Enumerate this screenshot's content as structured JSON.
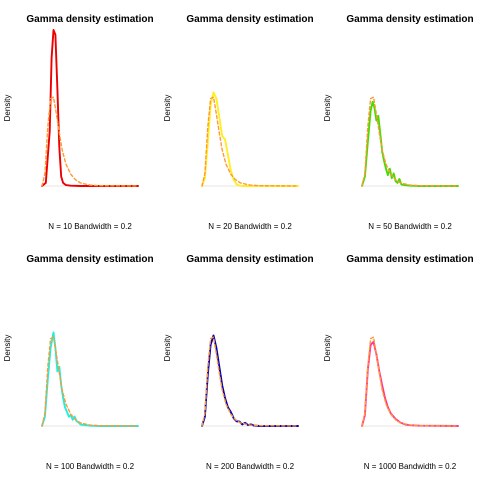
{
  "chart_data": [
    {
      "type": "line",
      "title": "Gamma density estimation",
      "xlabel": "N = 10   Bandwidth = 0.2",
      "ylabel": "Density",
      "xlim": [
        0,
        10
      ],
      "ylim": [
        0,
        1
      ],
      "series": [
        {
          "color": "#ee0000",
          "style": "solid",
          "x": [
            0,
            0.4,
            0.8,
            1.0,
            1.2,
            1.4,
            1.6,
            1.8,
            2.0,
            2.2,
            2.5,
            3.0,
            4.0,
            6.0,
            10.0
          ],
          "y": [
            0,
            0.02,
            0.35,
            0.82,
            1.0,
            0.97,
            0.62,
            0.25,
            0.06,
            0.02,
            0.006,
            0.002,
            0,
            0,
            0
          ]
        },
        {
          "color": "#ff9933",
          "style": "dashed",
          "x": [
            0,
            0.3,
            0.6,
            0.9,
            1.2,
            1.5,
            1.8,
            2.1,
            2.5,
            3.0,
            3.5,
            4.0,
            5.0,
            6.0,
            10.0
          ],
          "y": [
            0,
            0.08,
            0.38,
            0.56,
            0.57,
            0.46,
            0.34,
            0.23,
            0.14,
            0.075,
            0.04,
            0.02,
            0.006,
            0.002,
            0
          ]
        }
      ]
    },
    {
      "type": "line",
      "title": "Gamma density estimation",
      "xlabel": "N = 20   Bandwidth = 0.2",
      "ylabel": "Density",
      "xlim": [
        0,
        10
      ],
      "ylim": [
        0,
        1
      ],
      "series": [
        {
          "color": "#ffee22",
          "style": "solid",
          "x": [
            0,
            0.3,
            0.6,
            0.9,
            1.2,
            1.5,
            1.8,
            2.1,
            2.4,
            2.7,
            3.0,
            3.3,
            3.6,
            3.9,
            4.2,
            6.0,
            10.0
          ],
          "y": [
            0,
            0.05,
            0.28,
            0.52,
            0.6,
            0.56,
            0.44,
            0.32,
            0.3,
            0.2,
            0.1,
            0.04,
            0.01,
            0.003,
            0,
            0,
            0
          ]
        },
        {
          "color": "#ff9933",
          "style": "dashed",
          "x": [
            0,
            0.3,
            0.6,
            0.9,
            1.2,
            1.5,
            1.8,
            2.1,
            2.5,
            3.0,
            3.5,
            4.0,
            5.0,
            6.0,
            10.0
          ],
          "y": [
            0,
            0.08,
            0.38,
            0.56,
            0.57,
            0.46,
            0.34,
            0.23,
            0.14,
            0.075,
            0.04,
            0.02,
            0.006,
            0.002,
            0
          ]
        }
      ]
    },
    {
      "type": "line",
      "title": "Gamma density estimation",
      "xlabel": "N = 50   Bandwidth = 0.2",
      "ylabel": "Density",
      "xlim": [
        0,
        10
      ],
      "ylim": [
        0,
        1
      ],
      "series": [
        {
          "color": "#44dd00",
          "style": "solid",
          "x": [
            0,
            0.3,
            0.6,
            0.9,
            1.1,
            1.3,
            1.5,
            1.7,
            1.9,
            2.1,
            2.3,
            2.5,
            2.7,
            2.9,
            3.1,
            3.3,
            3.5,
            3.7,
            3.9,
            4.1,
            4.5,
            5.0,
            6.0,
            10.0
          ],
          "y": [
            0,
            0.06,
            0.28,
            0.48,
            0.54,
            0.5,
            0.42,
            0.45,
            0.34,
            0.22,
            0.16,
            0.11,
            0.07,
            0.11,
            0.05,
            0.08,
            0.03,
            0.02,
            0.045,
            0.01,
            0.005,
            0.002,
            0,
            0
          ]
        },
        {
          "color": "#ff9933",
          "style": "dashed",
          "x": [
            0,
            0.3,
            0.6,
            0.9,
            1.2,
            1.5,
            1.8,
            2.1,
            2.5,
            3.0,
            3.5,
            4.0,
            5.0,
            6.0,
            10.0
          ],
          "y": [
            0,
            0.08,
            0.38,
            0.56,
            0.57,
            0.46,
            0.34,
            0.23,
            0.14,
            0.075,
            0.04,
            0.02,
            0.006,
            0.002,
            0
          ]
        }
      ]
    },
    {
      "type": "line",
      "title": "Gamma density estimation",
      "xlabel": "N = 100   Bandwidth = 0.2",
      "ylabel": "Density",
      "xlim": [
        0,
        10
      ],
      "ylim": [
        0,
        1
      ],
      "series": [
        {
          "color": "#22eedd",
          "style": "solid",
          "x": [
            0,
            0.3,
            0.6,
            0.9,
            1.2,
            1.4,
            1.6,
            1.8,
            2.0,
            2.2,
            2.4,
            2.6,
            2.8,
            3.0,
            3.2,
            3.4,
            3.6,
            3.8,
            4.0,
            4.5,
            5.0,
            6.0,
            10.0
          ],
          "y": [
            0,
            0.06,
            0.3,
            0.5,
            0.6,
            0.5,
            0.35,
            0.38,
            0.26,
            0.18,
            0.12,
            0.09,
            0.06,
            0.07,
            0.04,
            0.06,
            0.03,
            0.025,
            0.01,
            0.005,
            0.002,
            0,
            0
          ]
        },
        {
          "color": "#ff9933",
          "style": "dashed",
          "x": [
            0,
            0.3,
            0.6,
            0.9,
            1.2,
            1.5,
            1.8,
            2.1,
            2.5,
            3.0,
            3.5,
            4.0,
            5.0,
            6.0,
            10.0
          ],
          "y": [
            0,
            0.08,
            0.38,
            0.56,
            0.57,
            0.46,
            0.34,
            0.23,
            0.14,
            0.075,
            0.04,
            0.02,
            0.006,
            0.002,
            0
          ]
        }
      ]
    },
    {
      "type": "line",
      "title": "Gamma density estimation",
      "xlabel": "N = 200   Bandwidth = 0.2",
      "ylabel": "Density",
      "xlim": [
        0,
        10
      ],
      "ylim": [
        0,
        1
      ],
      "series": [
        {
          "color": "#0000bb",
          "style": "solid",
          "x": [
            0,
            0.3,
            0.6,
            0.9,
            1.2,
            1.5,
            1.8,
            2.1,
            2.4,
            2.7,
            3.0,
            3.3,
            3.6,
            3.9,
            4.2,
            4.5,
            4.8,
            5.1,
            5.4,
            6.0,
            10.0
          ],
          "y": [
            0,
            0.06,
            0.33,
            0.52,
            0.58,
            0.5,
            0.38,
            0.26,
            0.18,
            0.12,
            0.09,
            0.05,
            0.03,
            0.028,
            0.01,
            0.02,
            0.006,
            0.01,
            0.003,
            0,
            0
          ]
        },
        {
          "color": "#ff9933",
          "style": "dashed",
          "x": [
            0,
            0.3,
            0.6,
            0.9,
            1.2,
            1.5,
            1.8,
            2.1,
            2.5,
            3.0,
            3.5,
            4.0,
            5.0,
            6.0,
            10.0
          ],
          "y": [
            0,
            0.08,
            0.38,
            0.56,
            0.57,
            0.46,
            0.34,
            0.23,
            0.14,
            0.075,
            0.04,
            0.02,
            0.006,
            0.002,
            0
          ]
        }
      ]
    },
    {
      "type": "line",
      "title": "Gamma density estimation",
      "xlabel": "N = 1000   Bandwidth = 0.2",
      "ylabel": "Density",
      "xlim": [
        0,
        10
      ],
      "ylim": [
        0,
        1
      ],
      "series": [
        {
          "color": "#ff3399",
          "style": "solid",
          "x": [
            0,
            0.3,
            0.6,
            0.9,
            1.2,
            1.5,
            1.8,
            2.1,
            2.4,
            2.7,
            3.0,
            3.5,
            4.0,
            4.5,
            5.0,
            6.0,
            10.0
          ],
          "y": [
            0,
            0.07,
            0.36,
            0.52,
            0.54,
            0.46,
            0.35,
            0.26,
            0.18,
            0.12,
            0.08,
            0.045,
            0.022,
            0.01,
            0.005,
            0.002,
            0
          ]
        },
        {
          "color": "#ff9933",
          "style": "dashed",
          "x": [
            0,
            0.3,
            0.6,
            0.9,
            1.2,
            1.5,
            1.8,
            2.1,
            2.5,
            3.0,
            3.5,
            4.0,
            5.0,
            6.0,
            10.0
          ],
          "y": [
            0,
            0.08,
            0.38,
            0.56,
            0.57,
            0.46,
            0.34,
            0.23,
            0.14,
            0.075,
            0.04,
            0.02,
            0.006,
            0.002,
            0
          ]
        }
      ]
    }
  ]
}
